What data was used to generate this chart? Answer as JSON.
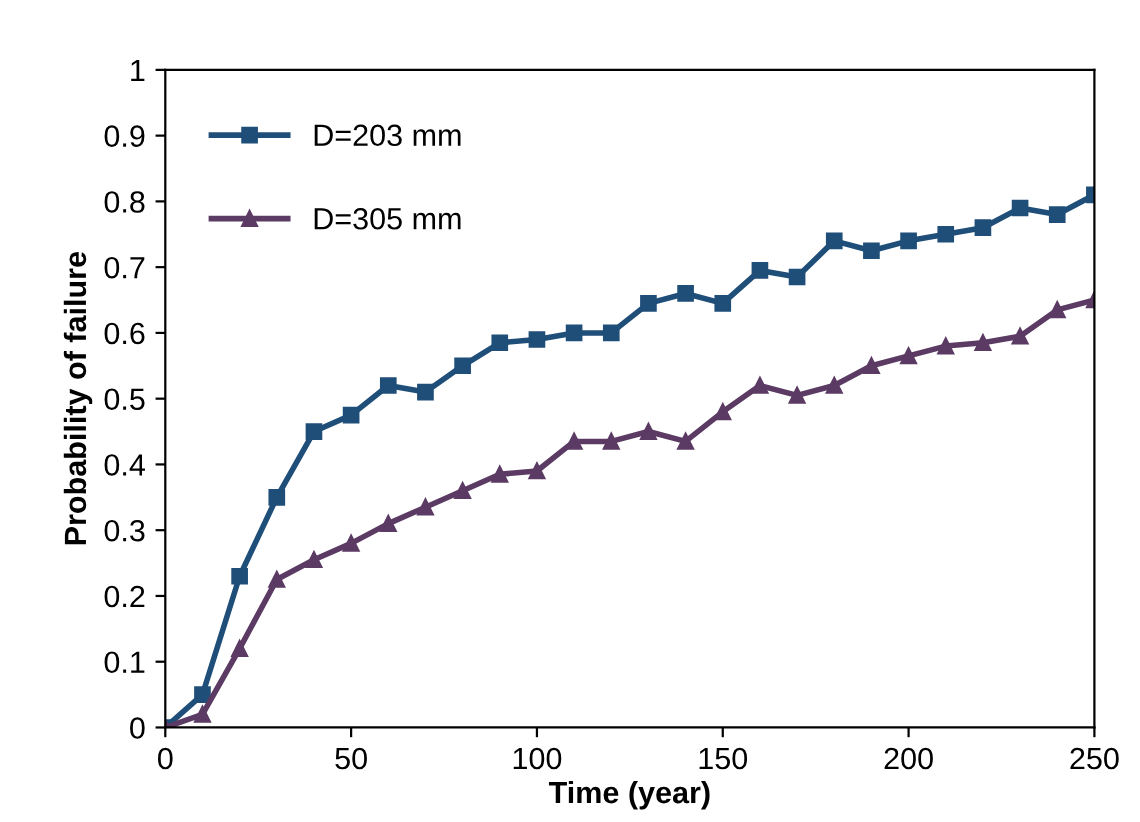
{
  "chart_data": {
    "type": "line",
    "xlabel": "Time (year)",
    "ylabel": "Probability of failure",
    "x": [
      0,
      10,
      20,
      30,
      40,
      50,
      60,
      70,
      80,
      90,
      100,
      110,
      120,
      130,
      140,
      150,
      160,
      170,
      180,
      190,
      200,
      210,
      220,
      230,
      240,
      250
    ],
    "series": [
      {
        "name": "D=203 mm",
        "color": "#1f4e79",
        "marker": "square",
        "values": [
          0,
          0.05,
          0.23,
          0.35,
          0.45,
          0.475,
          0.52,
          0.51,
          0.55,
          0.585,
          0.59,
          0.6,
          0.6,
          0.645,
          0.66,
          0.645,
          0.695,
          0.685,
          0.74,
          0.725,
          0.74,
          0.75,
          0.76,
          0.79,
          0.78,
          0.81
        ]
      },
      {
        "name": "D=305 mm",
        "color": "#5b3a64",
        "marker": "triangle",
        "values": [
          0,
          0.02,
          0.12,
          0.225,
          0.255,
          0.28,
          0.31,
          0.335,
          0.36,
          0.385,
          0.39,
          0.435,
          0.435,
          0.45,
          0.435,
          0.48,
          0.52,
          0.505,
          0.52,
          0.55,
          0.565,
          0.58,
          0.585,
          0.595,
          0.635,
          0.65
        ]
      }
    ],
    "xlim": [
      0,
      250
    ],
    "xticks": [
      0,
      50,
      100,
      150,
      200,
      250
    ],
    "ylim": [
      0,
      1
    ],
    "yticks": [
      0,
      {
        "value": 0.1,
        "label": "0.1"
      },
      {
        "value": 0.2,
        "label": "0.2"
      },
      {
        "value": 0.3,
        "label": "0.3"
      },
      {
        "value": 0.4,
        "label": "0.4"
      },
      {
        "value": 0.5,
        "label": "0.5"
      },
      {
        "value": 0.6,
        "label": "0.6"
      },
      {
        "value": 0.7,
        "label": "0.7"
      },
      {
        "value": 0.8,
        "label": "0.8"
      },
      {
        "value": 0.9,
        "label": "0.9"
      },
      1
    ],
    "grid": false,
    "legend": "top left",
    "line_style": "solid"
  }
}
